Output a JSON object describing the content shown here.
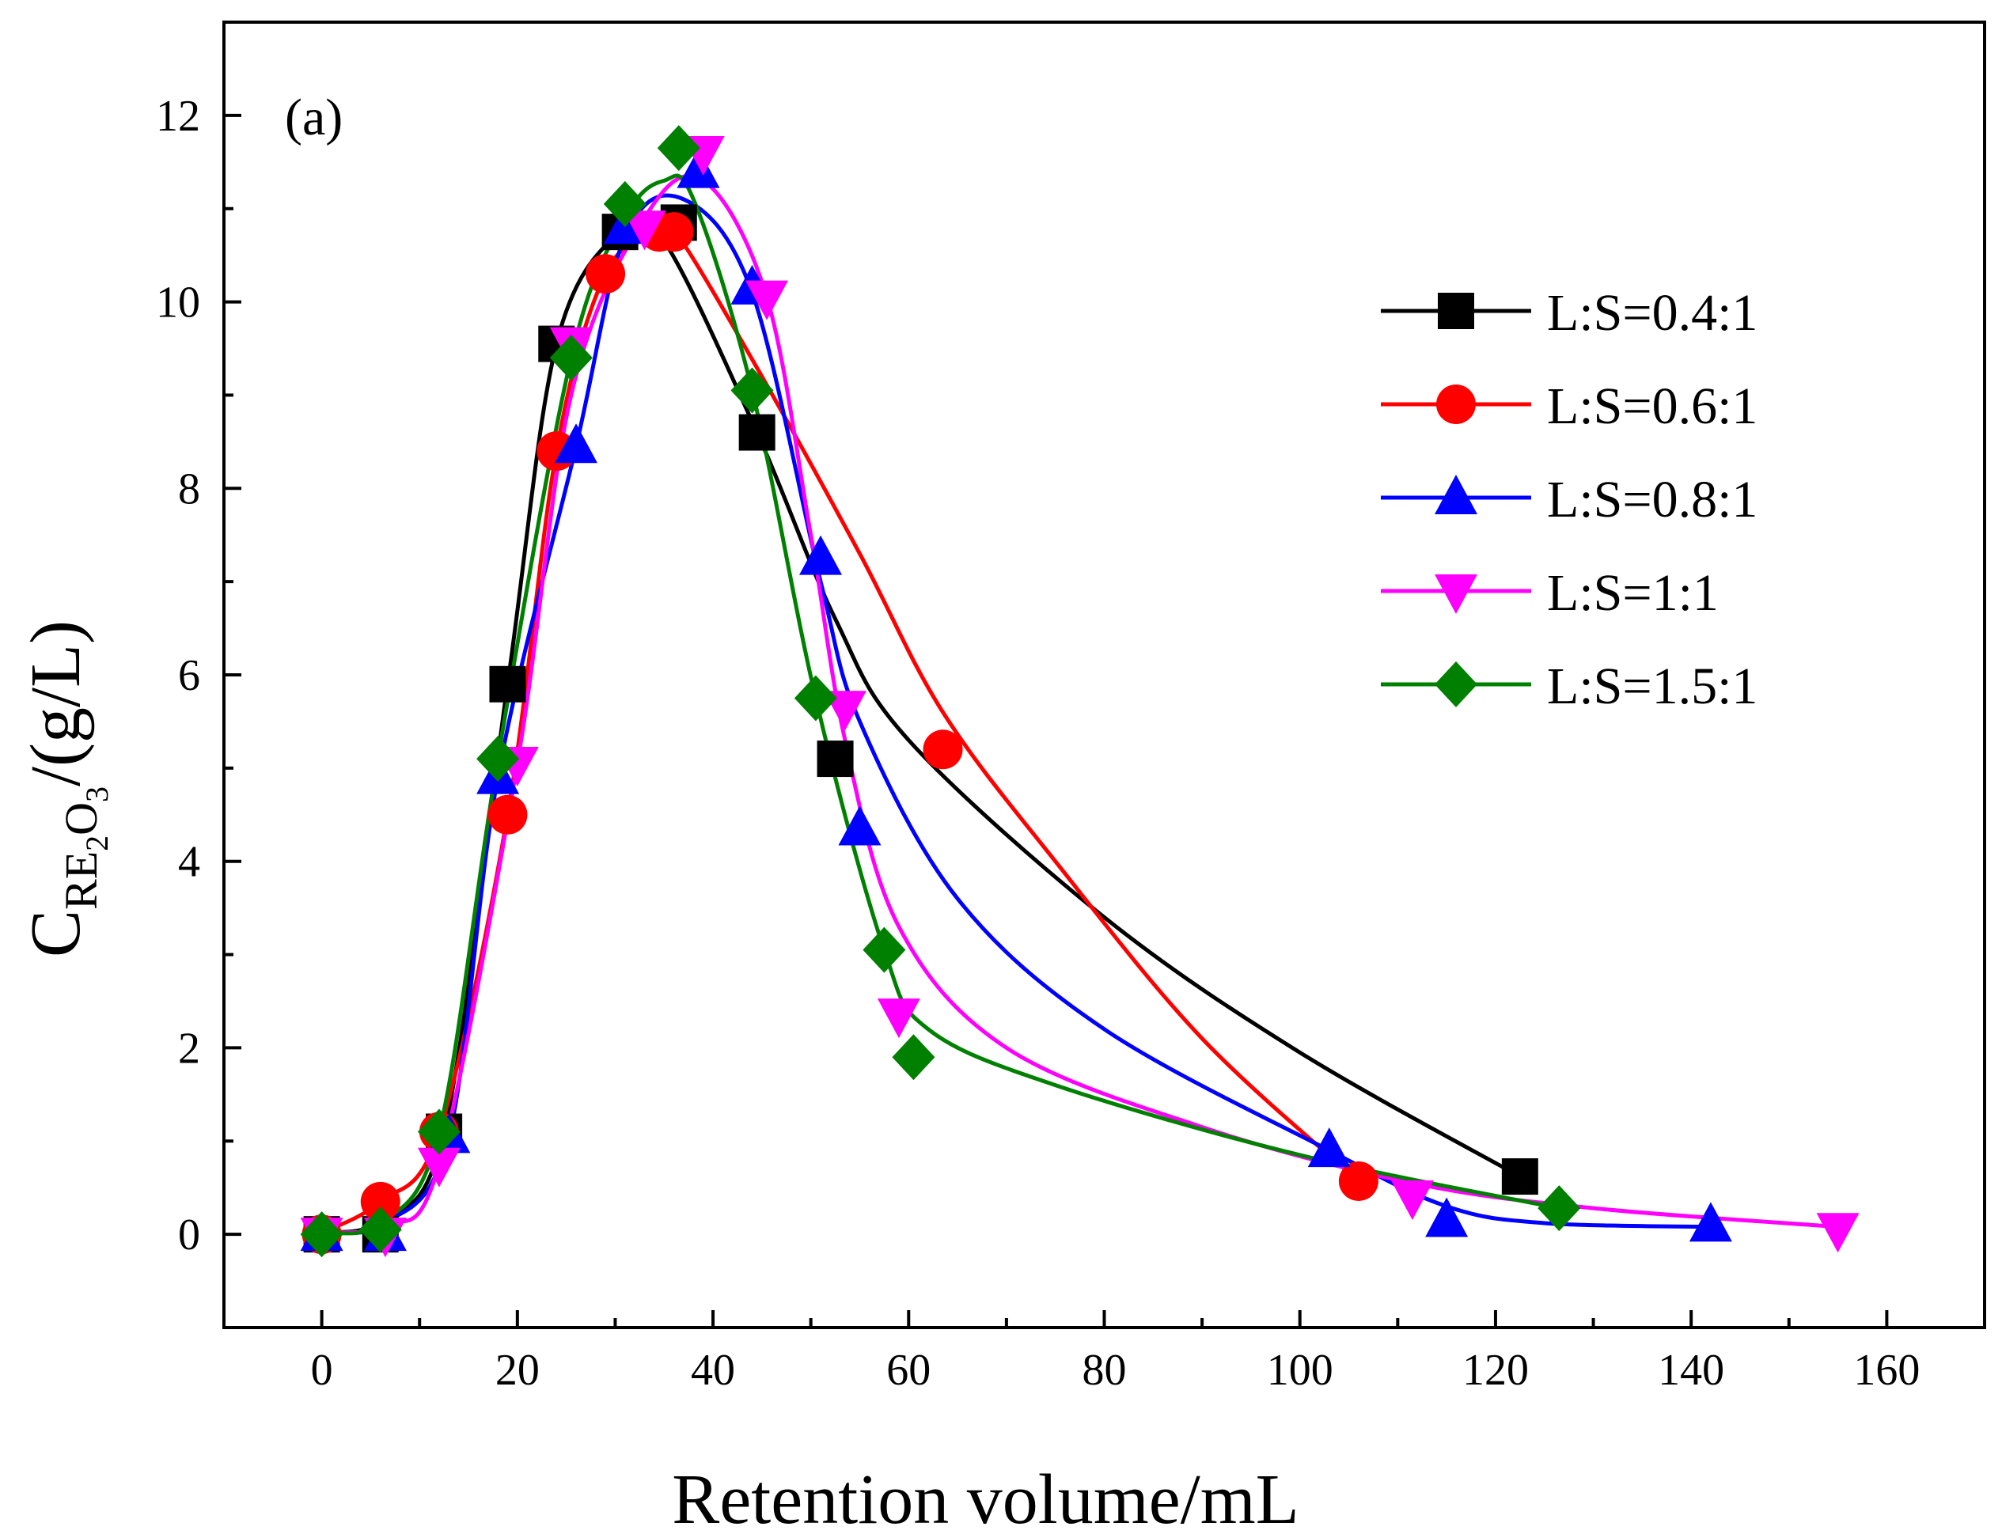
{
  "chart_data": {
    "type": "scatter",
    "panel_label": "(a)",
    "xlabel": "Retention volume/mL",
    "ylabel": {
      "base": "C",
      "sub1": "RE",
      "sub2": "2",
      "sub3": "O",
      "sub4": "3",
      "unit": "/(g/L)"
    },
    "xlim": [
      -10,
      170
    ],
    "ylim": [
      -1,
      13
    ],
    "xticks": [
      0,
      20,
      40,
      60,
      80,
      100,
      120,
      140,
      160
    ],
    "yticks": [
      0,
      2,
      4,
      6,
      8,
      10,
      12
    ],
    "grid": false,
    "legend_position": "right",
    "series": [
      {
        "name": "L:S=0.4:1",
        "color": "#000000",
        "marker": "square",
        "points": [
          [
            0,
            0
          ],
          [
            6,
            0
          ],
          [
            12.5,
            1.1
          ],
          [
            19,
            5.9
          ],
          [
            24,
            9.55
          ],
          [
            30.5,
            10.75
          ],
          [
            36.5,
            10.85
          ],
          [
            44.5,
            8.6
          ],
          [
            52.5,
            5.1
          ],
          [
            122.5,
            0.62
          ]
        ],
        "curve": [
          [
            -1.5,
            0
          ],
          [
            0,
            0.02
          ],
          [
            6,
            0.15
          ],
          [
            12.5,
            1.1
          ],
          [
            19,
            5.9
          ],
          [
            24,
            9.55
          ],
          [
            30.5,
            10.75
          ],
          [
            35,
            10.65
          ],
          [
            44.5,
            8.6
          ],
          [
            52.5,
            6.6
          ],
          [
            60,
            5.3
          ],
          [
            80,
            3.4
          ],
          [
            100,
            1.95
          ],
          [
            122.5,
            0.62
          ]
        ]
      },
      {
        "name": "L:S=0.6:1",
        "color": "#ff0000",
        "marker": "circle",
        "points": [
          [
            0,
            0
          ],
          [
            6,
            0.35
          ],
          [
            12,
            1.1
          ],
          [
            19,
            4.5
          ],
          [
            24,
            8.4
          ],
          [
            29,
            10.3
          ],
          [
            34.5,
            10.75
          ],
          [
            36,
            10.75
          ],
          [
            63.5,
            5.2
          ],
          [
            106,
            0.57
          ]
        ],
        "curve": [
          [
            -1.5,
            0
          ],
          [
            0,
            0.02
          ],
          [
            6,
            0.35
          ],
          [
            12,
            1.1
          ],
          [
            19,
            4.5
          ],
          [
            24,
            8.4
          ],
          [
            29,
            10.3
          ],
          [
            34.5,
            10.75
          ],
          [
            36.5,
            10.7
          ],
          [
            45,
            9.2
          ],
          [
            55,
            7.3
          ],
          [
            63.5,
            5.6
          ],
          [
            75,
            4.0
          ],
          [
            90,
            2.1
          ],
          [
            106,
            0.57
          ]
        ]
      },
      {
        "name": "L:S=0.8:1",
        "color": "#0000ff",
        "marker": "triangle-up",
        "points": [
          [
            0,
            0
          ],
          [
            6.5,
            0
          ],
          [
            13,
            1.05
          ],
          [
            18,
            4.9
          ],
          [
            26,
            8.45
          ],
          [
            31,
            10.8
          ],
          [
            38.5,
            11.4
          ],
          [
            44,
            10.15
          ],
          [
            51,
            7.25
          ],
          [
            55,
            4.35
          ],
          [
            103,
            0.9
          ],
          [
            115,
            0.15
          ],
          [
            142,
            0.1
          ]
        ],
        "curve": [
          [
            -1.5,
            0
          ],
          [
            0,
            0.02
          ],
          [
            6.5,
            0.12
          ],
          [
            13,
            1.05
          ],
          [
            18,
            4.9
          ],
          [
            26,
            8.45
          ],
          [
            31,
            10.7
          ],
          [
            37,
            11.1
          ],
          [
            44,
            10.1
          ],
          [
            51,
            7.0
          ],
          [
            55,
            5.5
          ],
          [
            65,
            3.6
          ],
          [
            80,
            2.2
          ],
          [
            103,
            0.9
          ],
          [
            115,
            0.3
          ],
          [
            125,
            0.12
          ],
          [
            142,
            0.08
          ]
        ]
      },
      {
        "name": "L:S=1:1",
        "color": "#ff00ff",
        "marker": "triangle-down",
        "points": [
          [
            0,
            0
          ],
          [
            6.5,
            0
          ],
          [
            12,
            0.75
          ],
          [
            20,
            5.05
          ],
          [
            25.5,
            9.55
          ],
          [
            33,
            10.8
          ],
          [
            39,
            11.6
          ],
          [
            45.5,
            10.05
          ],
          [
            53.5,
            5.65
          ],
          [
            59,
            2.35
          ],
          [
            111.5,
            0.4
          ],
          [
            155,
            0.05
          ]
        ],
        "curve": [
          [
            -1.5,
            0
          ],
          [
            0,
            0.02
          ],
          [
            6.5,
            0.1
          ],
          [
            12,
            0.75
          ],
          [
            20,
            5.05
          ],
          [
            25.5,
            9.0
          ],
          [
            33,
            10.9
          ],
          [
            39,
            11.3
          ],
          [
            45.5,
            10.05
          ],
          [
            50,
            7.5
          ],
          [
            53.5,
            5.3
          ],
          [
            59,
            3.3
          ],
          [
            70,
            2.0
          ],
          [
            90,
            1.15
          ],
          [
            111.5,
            0.55
          ],
          [
            130,
            0.28
          ],
          [
            155,
            0.08
          ]
        ]
      },
      {
        "name": "L:S=1.5:1",
        "color": "#008000",
        "marker": "diamond",
        "points": [
          [
            0,
            0
          ],
          [
            6,
            0.05
          ],
          [
            12,
            1.1
          ],
          [
            18,
            5.1
          ],
          [
            25.5,
            9.4
          ],
          [
            31,
            11.05
          ],
          [
            36.5,
            11.65
          ],
          [
            44,
            9.05
          ],
          [
            50.5,
            5.75
          ],
          [
            57.5,
            3.05
          ],
          [
            60.5,
            1.9
          ],
          [
            126.5,
            0.28
          ]
        ],
        "curve": [
          [
            -1.5,
            0
          ],
          [
            0,
            0.02
          ],
          [
            6,
            0.12
          ],
          [
            12,
            1.1
          ],
          [
            18,
            5.1
          ],
          [
            25.5,
            9.4
          ],
          [
            31,
            10.9
          ],
          [
            35,
            11.3
          ],
          [
            38,
            11.1
          ],
          [
            44,
            9.05
          ],
          [
            50.5,
            5.75
          ],
          [
            57.5,
            3.05
          ],
          [
            62,
            2.2
          ],
          [
            75,
            1.6
          ],
          [
            100,
            0.85
          ],
          [
            126.5,
            0.28
          ]
        ]
      }
    ]
  }
}
